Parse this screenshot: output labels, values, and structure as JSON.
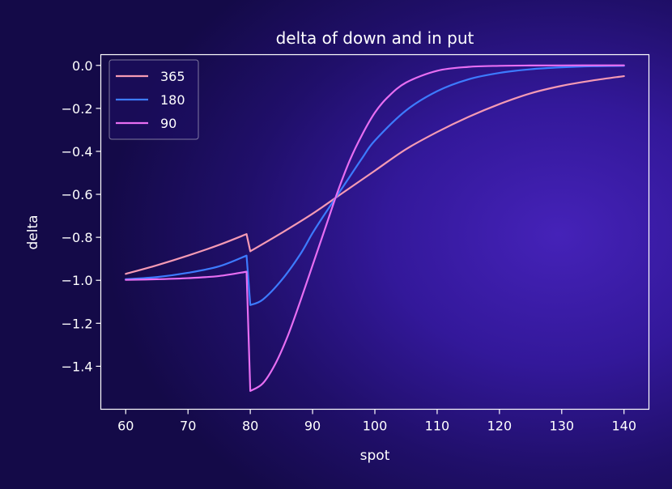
{
  "chart_data": {
    "type": "line",
    "title": "delta of down and in put",
    "xlabel": "spot",
    "ylabel": "delta",
    "xlim": [
      56,
      144
    ],
    "ylim": [
      -1.6,
      0.05
    ],
    "xticks": [
      60,
      70,
      80,
      90,
      100,
      110,
      120,
      130,
      140
    ],
    "yticks": [
      0.0,
      -0.2,
      -0.4,
      -0.6,
      -0.8,
      -1.0,
      -1.2,
      -1.4
    ],
    "xtick_labels": [
      "60",
      "70",
      "80",
      "90",
      "100",
      "110",
      "120",
      "130",
      "140"
    ],
    "ytick_labels": [
      "0.0",
      "−0.2",
      "−0.4",
      "−0.6",
      "−0.8",
      "−1.0",
      "−1.2",
      "−1.4"
    ],
    "grid": false,
    "legend": "top-left",
    "series": [
      {
        "name": "365",
        "color": "#f59ab4",
        "x": [
          60,
          65,
          70,
          75,
          79.4,
          80,
          85,
          90,
          95,
          100,
          105,
          110,
          115,
          120,
          125,
          130,
          135,
          140
        ],
        "y": [
          -0.97,
          -0.93,
          -0.885,
          -0.835,
          -0.785,
          -0.865,
          -0.78,
          -0.69,
          -0.59,
          -0.49,
          -0.39,
          -0.31,
          -0.24,
          -0.18,
          -0.13,
          -0.095,
          -0.07,
          -0.05
        ]
      },
      {
        "name": "180",
        "color": "#3d7bff",
        "x": [
          60,
          65,
          70,
          75,
          79.4,
          80,
          82,
          85,
          88,
          90,
          92,
          95,
          98,
          100,
          105,
          110,
          115,
          120,
          125,
          130,
          135,
          140
        ],
        "y": [
          -0.995,
          -0.985,
          -0.965,
          -0.935,
          -0.885,
          -1.115,
          -1.09,
          -1.0,
          -0.88,
          -0.78,
          -0.69,
          -0.56,
          -0.43,
          -0.35,
          -0.21,
          -0.12,
          -0.065,
          -0.035,
          -0.018,
          -0.009,
          -0.004,
          -0.002
        ]
      },
      {
        "name": "90",
        "color": "#e76ef2",
        "x": [
          60,
          65,
          70,
          75,
          79.4,
          80,
          82,
          84,
          86,
          88,
          90,
          92,
          94,
          96,
          98,
          100,
          102,
          105,
          110,
          115,
          120,
          125,
          130,
          135,
          140
        ],
        "y": [
          -0.998,
          -0.995,
          -0.99,
          -0.98,
          -0.96,
          -1.515,
          -1.48,
          -1.39,
          -1.26,
          -1.1,
          -0.93,
          -0.76,
          -0.59,
          -0.44,
          -0.32,
          -0.22,
          -0.15,
          -0.08,
          -0.025,
          -0.007,
          -0.002,
          -0.0005,
          -0.0001,
          0.0,
          0.0
        ]
      }
    ]
  }
}
